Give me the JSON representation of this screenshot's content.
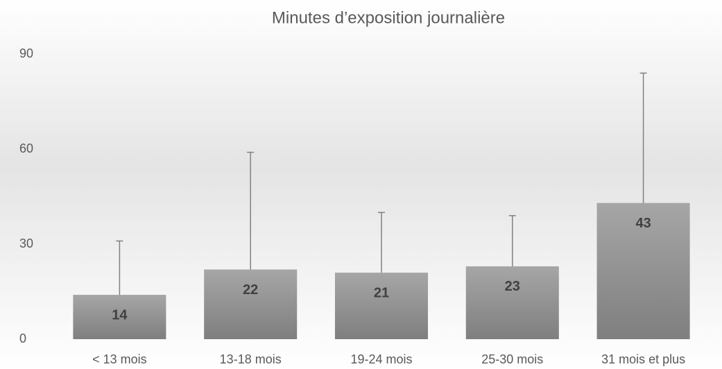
{
  "chart_data": {
    "type": "bar",
    "title": "Minutes d’exposition journalière",
    "categories": [
      "< 13 mois",
      "13-18 mois",
      "19-24 mois",
      "25-30 mois",
      "31 mois et plus"
    ],
    "values": [
      14,
      22,
      21,
      23,
      43
    ],
    "errors": [
      17,
      37,
      19,
      16,
      41
    ],
    "color": "#8c8c8c",
    "ylim": [
      0,
      90
    ],
    "yticks": [
      0,
      30,
      60,
      90
    ],
    "grid": false
  }
}
